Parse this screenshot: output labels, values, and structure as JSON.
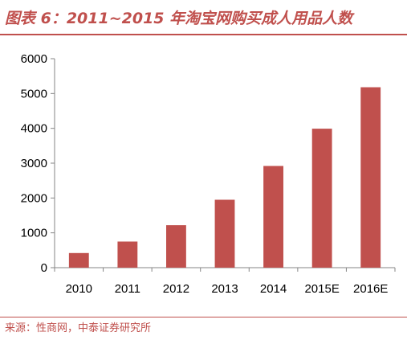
{
  "figure_title": "图表 6：2011~2015 年淘宝网购买成人用品人数",
  "source_note": "来源：性商网，中泰证券研究所",
  "colors": {
    "accent": "#c0504d",
    "bar": "#c0504d",
    "axis": "#868686",
    "text": "#000000"
  },
  "chart_data": {
    "type": "bar",
    "title": "",
    "xlabel": "",
    "ylabel": "",
    "categories": [
      "2010",
      "2011",
      "2012",
      "2013",
      "2014",
      "2015E",
      "2016E"
    ],
    "values": [
      420,
      750,
      1220,
      1950,
      2920,
      3990,
      5180
    ],
    "ylim": [
      0,
      6000
    ],
    "yticks": [
      0,
      1000,
      2000,
      3000,
      4000,
      5000,
      6000
    ],
    "ytick_labels": [
      "0",
      "1000",
      "2000",
      "3000",
      "4000",
      "5000",
      "6000"
    ],
    "grid": false,
    "legend": "none"
  }
}
